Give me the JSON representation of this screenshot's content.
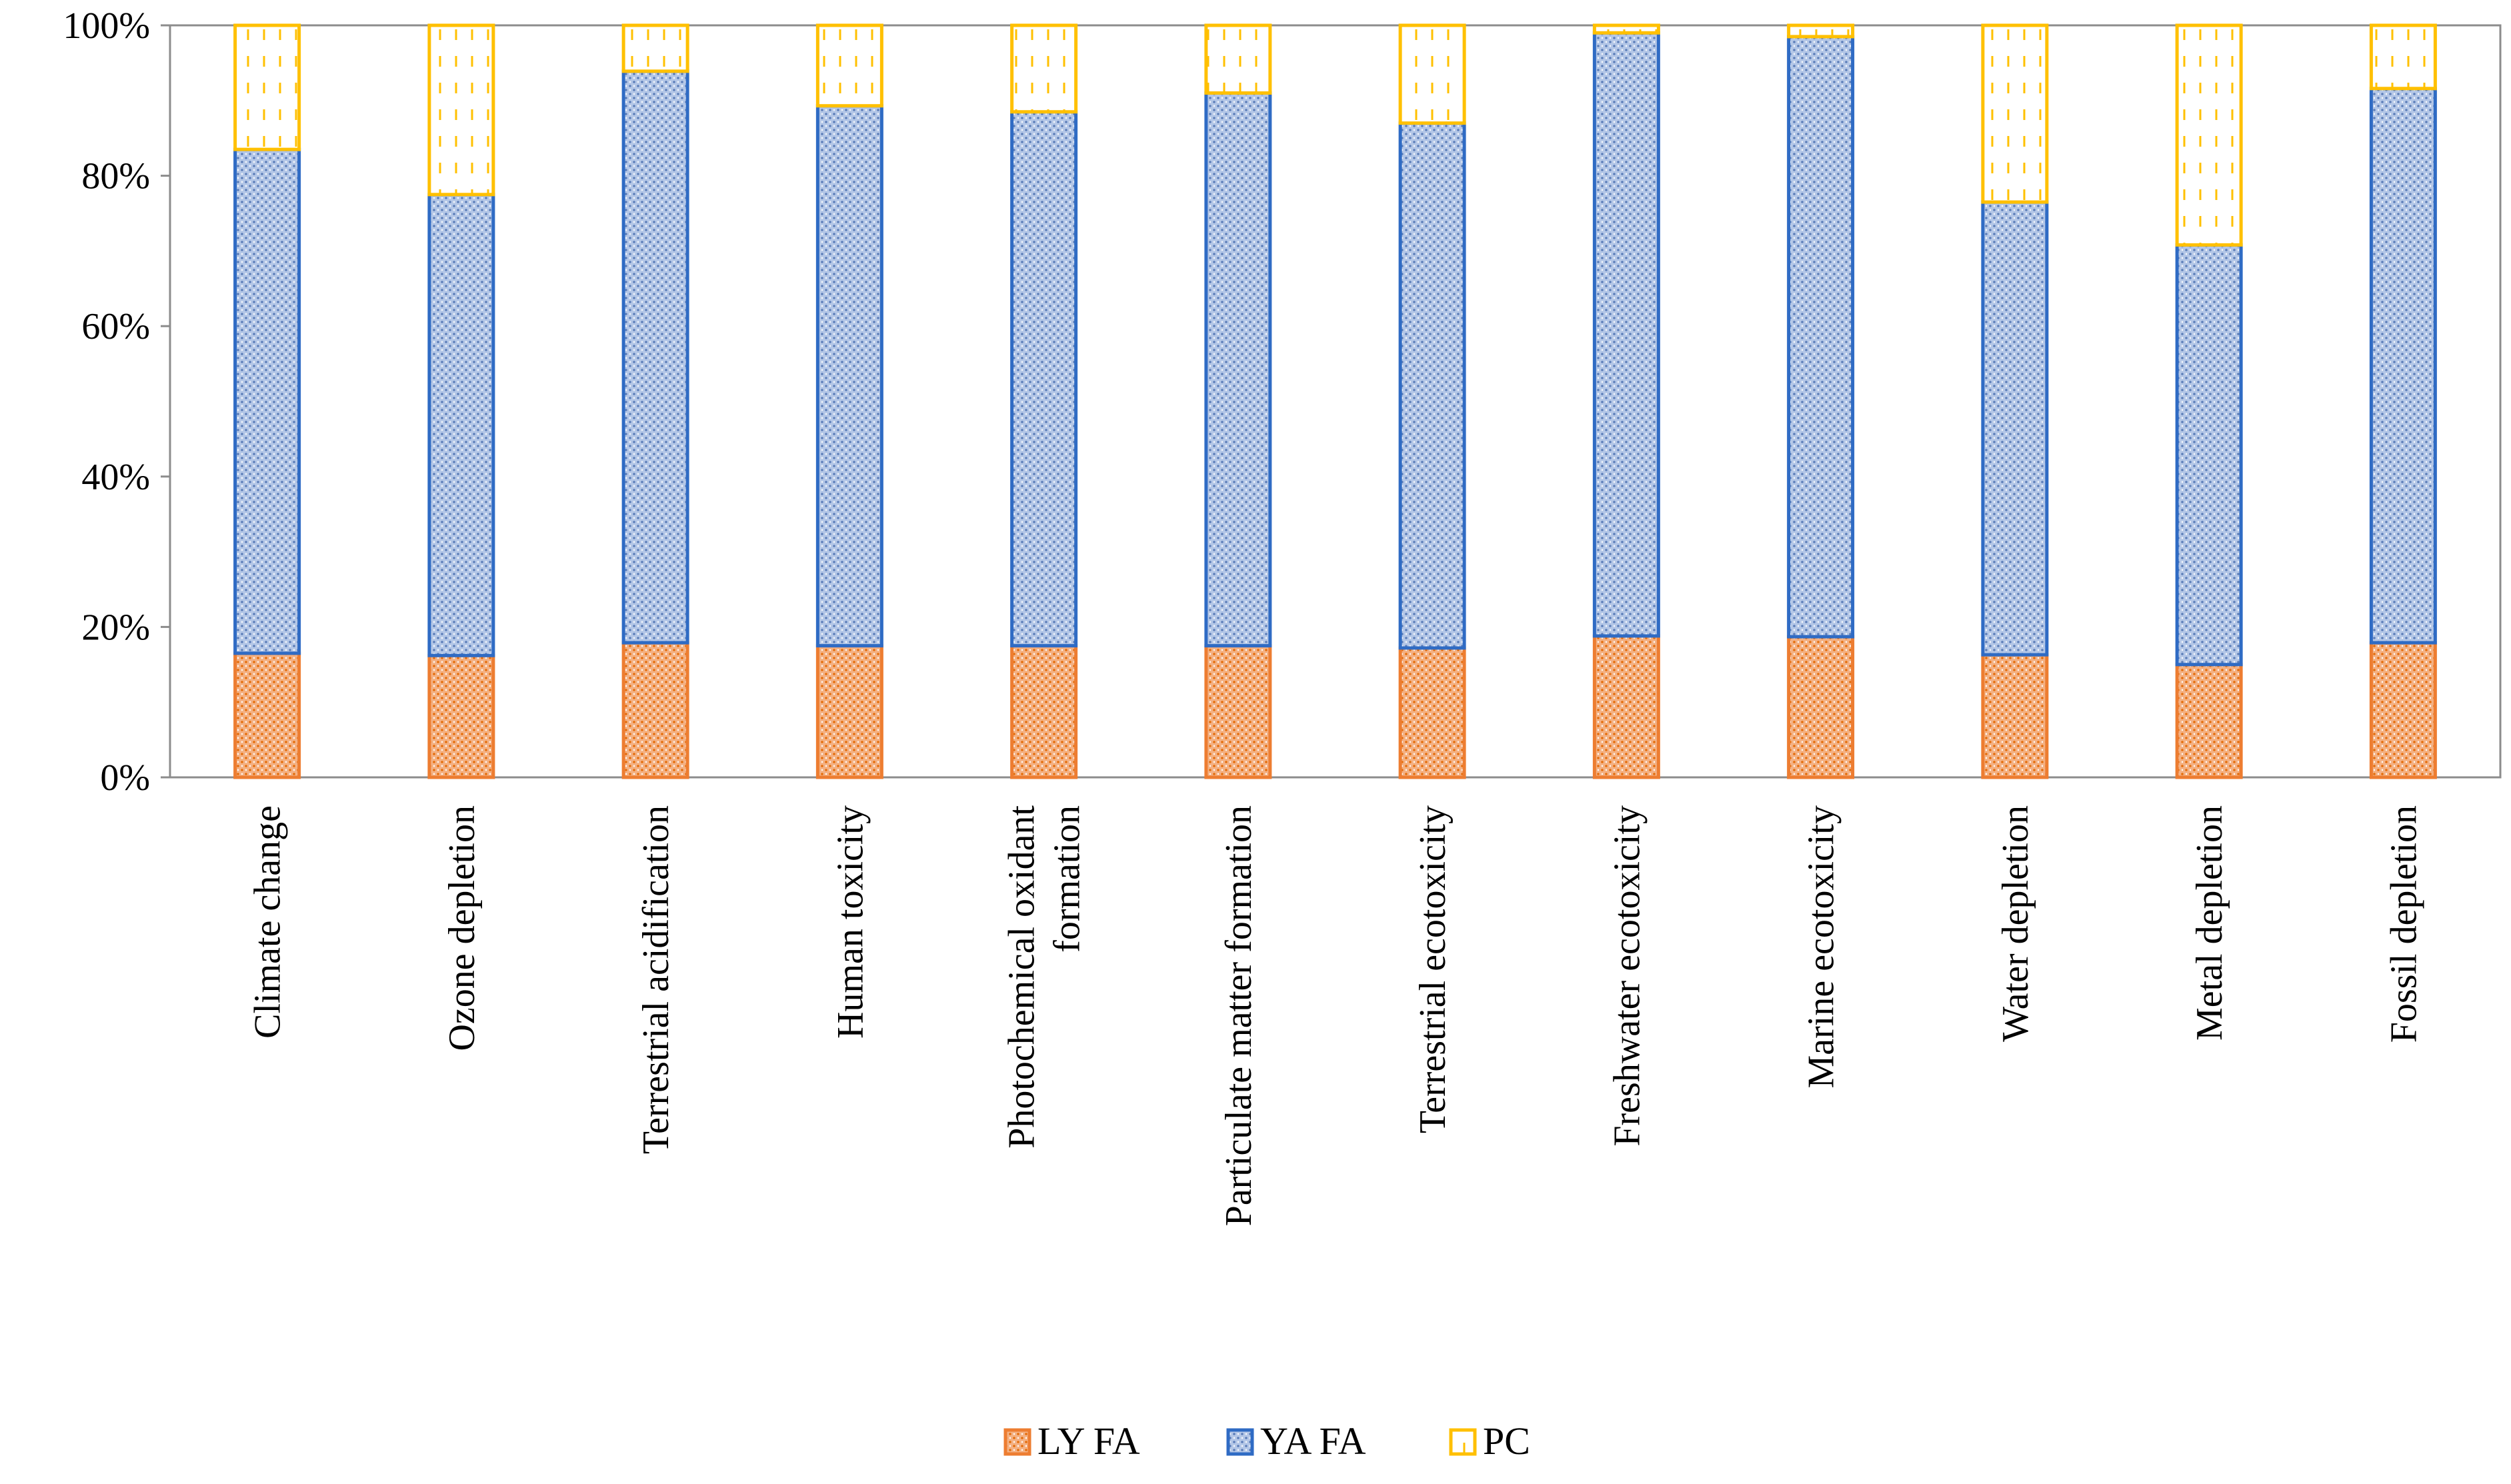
{
  "chart_data": {
    "type": "bar",
    "stacked": true,
    "percent_stacked": true,
    "title": "",
    "xlabel": "",
    "ylabel": "",
    "ylim": [
      0,
      100
    ],
    "y_ticks": [
      "0%",
      "20%",
      "40%",
      "60%",
      "80%",
      "100%"
    ],
    "categories": [
      [
        "Climate change"
      ],
      [
        "Ozone depletion"
      ],
      [
        "Terrestrial acidification"
      ],
      [
        "Human toxicity"
      ],
      [
        "Photochemical oxidant",
        "formation"
      ],
      [
        "Particulate matter formation"
      ],
      [
        "Terrestrial ecotoxicity"
      ],
      [
        "Freshwater ecotoxicity"
      ],
      [
        "Marine ecotoxicity"
      ],
      [
        "Water depletion"
      ],
      [
        "Metal depletion"
      ],
      [
        "Fossil depletion"
      ]
    ],
    "series": [
      {
        "name": "LY FA",
        "values": [
          16.5,
          16.2,
          17.9,
          17.5,
          17.5,
          17.5,
          17.2,
          18.8,
          18.7,
          16.3,
          15.0,
          17.9
        ],
        "color": "#ED7D31",
        "pattern": "dots"
      },
      {
        "name": "YA FA",
        "values": [
          67.0,
          61.3,
          76.0,
          71.8,
          71.0,
          73.5,
          69.8,
          80.2,
          79.8,
          60.2,
          55.8,
          73.7
        ],
        "color": "#4472C4",
        "pattern": "dots"
      },
      {
        "name": "PC",
        "values": [
          16.5,
          22.5,
          6.1,
          10.7,
          11.5,
          9.0,
          13.0,
          1.0,
          1.5,
          23.5,
          29.2,
          8.4
        ],
        "color": "#FFC000",
        "pattern": "dashes"
      }
    ],
    "grid": false,
    "legend_position": "bottom"
  }
}
